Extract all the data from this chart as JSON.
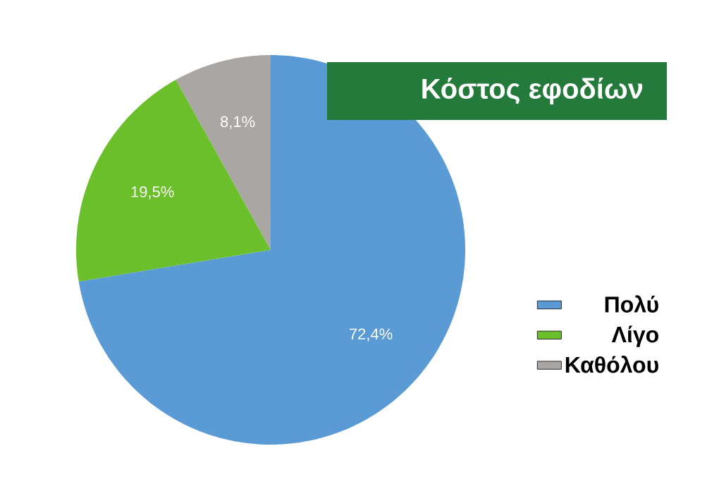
{
  "chart_data": {
    "type": "pie",
    "title": "Κόστος εφοδίων",
    "categories": [
      "Πολύ",
      "Λίγο",
      "Καθόλου"
    ],
    "values": [
      72.4,
      19.5,
      8.1
    ],
    "colors": [
      "#5b9bd5",
      "#6abf2a",
      "#aaa6a3"
    ],
    "value_labels": [
      "72,4%",
      "19,5%",
      "8,1%"
    ],
    "legend": "right"
  }
}
